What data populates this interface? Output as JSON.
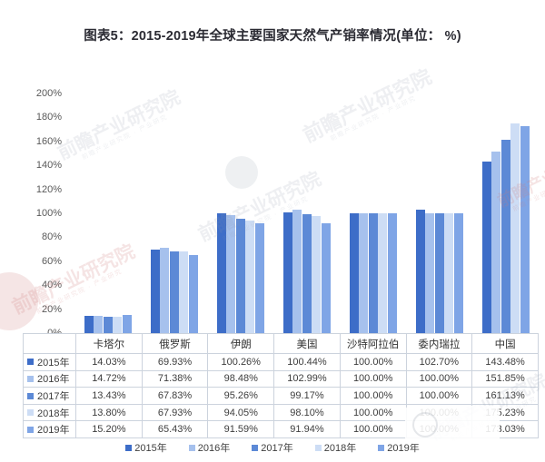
{
  "title": "图表5：2015-2019年全球主要国家天然气产销率情况(单位： %)",
  "chart_data": {
    "type": "bar",
    "categories": [
      "卡塔尔",
      "俄罗斯",
      "伊朗",
      "美国",
      "沙特阿拉伯",
      "委内瑞拉",
      "中国"
    ],
    "series": [
      {
        "name": "2015年",
        "color": "#3d6dc8",
        "values": [
          14.03,
          69.93,
          100.26,
          100.44,
          100.0,
          102.7,
          143.48
        ]
      },
      {
        "name": "2016年",
        "color": "#a6c1ed",
        "values": [
          14.72,
          71.38,
          98.48,
          102.99,
          100.0,
          100.0,
          151.85
        ]
      },
      {
        "name": "2017年",
        "color": "#5c89d6",
        "values": [
          13.43,
          67.83,
          95.26,
          99.17,
          100.0,
          100.0,
          161.13
        ]
      },
      {
        "name": "2018年",
        "color": "#cdddf5",
        "values": [
          13.8,
          67.93,
          94.05,
          98.1,
          100.0,
          100.0,
          175.23
        ]
      },
      {
        "name": "2019年",
        "color": "#7fa5e6",
        "values": [
          15.2,
          65.43,
          91.59,
          91.94,
          100.0,
          100.0,
          173.03
        ]
      }
    ],
    "title": "图表5：2015-2019年全球主要国家天然气产销率情况(单位： %)",
    "xlabel": "",
    "ylabel": "",
    "ylim": [
      0,
      200
    ],
    "ytick_step": 20,
    "yticks": [
      "0%",
      "20%",
      "40%",
      "60%",
      "80%",
      "100%",
      "120%",
      "140%",
      "160%",
      "180%",
      "200%"
    ],
    "grid": false,
    "legend_position": "bottom"
  },
  "table": {
    "columns": [
      "卡塔尔",
      "俄罗斯",
      "伊朗",
      "美国",
      "沙特阿拉伯",
      "委内瑞拉",
      "中国"
    ],
    "rows": [
      {
        "label": "2015年",
        "values": [
          "14.03%",
          "69.93%",
          "100.26%",
          "100.44%",
          "100.00%",
          "102.70%",
          "143.48%"
        ]
      },
      {
        "label": "2016年",
        "values": [
          "14.72%",
          "71.38%",
          "98.48%",
          "102.99%",
          "100.00%",
          "100.00%",
          "151.85%"
        ]
      },
      {
        "label": "2017年",
        "values": [
          "13.43%",
          "67.83%",
          "95.26%",
          "99.17%",
          "100.00%",
          "100.00%",
          "161.13%"
        ]
      },
      {
        "label": "2018年",
        "values": [
          "13.80%",
          "67.93%",
          "94.05%",
          "98.10%",
          "100.00%",
          "100.00%",
          "175.23%"
        ]
      },
      {
        "label": "2019年",
        "values": [
          "15.20%",
          "65.43%",
          "91.59%",
          "91.94%",
          "100.00%",
          "100.00%",
          "173.03%"
        ]
      }
    ]
  },
  "legend": {
    "items": [
      "2015年",
      "2016年",
      "2017年",
      "2018年",
      "2019年"
    ]
  },
  "watermark": {
    "text": "前瞻产业研究院",
    "subtext": "前瞻产业研究院 · 产业研究"
  },
  "colors": {
    "title_text": "#2b2b33",
    "axis_text": "#595959",
    "table_border": "#ccd3dd",
    "table_text": "#3d3d3d"
  }
}
